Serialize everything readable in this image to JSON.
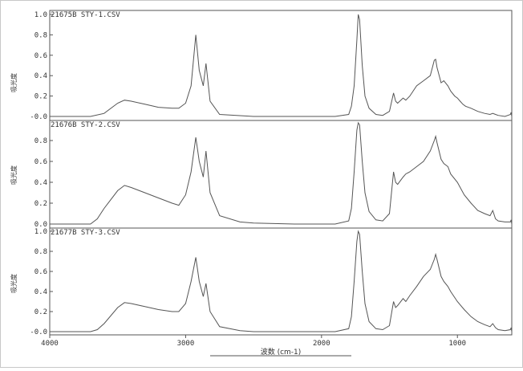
{
  "window": {
    "border_color": "#c0c0c0"
  },
  "chart_data": [
    {
      "type": "line",
      "header": "21675B  STY-1.CSV",
      "ylabel": "吸光度",
      "ylim": [
        -0.05,
        1.0
      ],
      "yticks": [
        "1.0",
        "0.8",
        "0.6",
        "0.4",
        "0.2",
        "-0.0"
      ],
      "xlim": [
        4000,
        600
      ],
      "x": [
        4000,
        3700,
        3600,
        3500,
        3450,
        3400,
        3300,
        3200,
        3100,
        3050,
        3000,
        2960,
        2925,
        2900,
        2870,
        2850,
        2820,
        2750,
        2500,
        2200,
        2000,
        1900,
        1800,
        1780,
        1760,
        1740,
        1730,
        1720,
        1700,
        1680,
        1650,
        1600,
        1550,
        1500,
        1470,
        1455,
        1440,
        1400,
        1380,
        1350,
        1300,
        1250,
        1200,
        1170,
        1160,
        1150,
        1120,
        1100,
        1070,
        1050,
        1020,
        1000,
        980,
        960,
        940,
        900,
        850,
        800,
        760,
        740,
        720,
        700,
        650,
        610,
        605,
        600
      ],
      "values": [
        0.0,
        0.0,
        0.03,
        0.13,
        0.16,
        0.15,
        0.12,
        0.09,
        0.08,
        0.08,
        0.13,
        0.3,
        0.8,
        0.45,
        0.3,
        0.52,
        0.15,
        0.02,
        0.0,
        0.0,
        0.0,
        0.0,
        0.02,
        0.1,
        0.3,
        0.75,
        1.0,
        0.95,
        0.5,
        0.2,
        0.08,
        0.02,
        0.01,
        0.05,
        0.23,
        0.15,
        0.13,
        0.18,
        0.16,
        0.2,
        0.3,
        0.35,
        0.4,
        0.55,
        0.56,
        0.48,
        0.33,
        0.35,
        0.3,
        0.25,
        0.2,
        0.18,
        0.15,
        0.12,
        0.1,
        0.08,
        0.05,
        0.03,
        0.02,
        0.03,
        0.02,
        0.01,
        0.0,
        0.02,
        0.04,
        0.0
      ]
    },
    {
      "type": "line",
      "header": "21676B  STY-2.CSV",
      "ylabel": "吸光度",
      "ylim": [
        0.0,
        1.0
      ],
      "yticks": [
        "0.8",
        "0.6",
        "0.4",
        "0.2",
        "0.0"
      ],
      "xlim": [
        4000,
        600
      ],
      "x": [
        4000,
        3700,
        3650,
        3600,
        3500,
        3450,
        3400,
        3300,
        3200,
        3100,
        3050,
        3000,
        2960,
        2925,
        2900,
        2870,
        2850,
        2820,
        2750,
        2600,
        2500,
        2200,
        2000,
        1900,
        1800,
        1780,
        1760,
        1740,
        1730,
        1720,
        1700,
        1680,
        1650,
        1600,
        1550,
        1500,
        1470,
        1455,
        1440,
        1400,
        1380,
        1350,
        1300,
        1250,
        1200,
        1170,
        1160,
        1150,
        1120,
        1100,
        1070,
        1050,
        1000,
        950,
        900,
        850,
        800,
        760,
        740,
        720,
        700,
        650,
        610,
        605,
        600
      ],
      "values": [
        0.0,
        0.0,
        0.05,
        0.15,
        0.32,
        0.37,
        0.35,
        0.3,
        0.25,
        0.2,
        0.18,
        0.28,
        0.5,
        0.83,
        0.6,
        0.45,
        0.7,
        0.3,
        0.08,
        0.02,
        0.01,
        0.0,
        0.0,
        0.0,
        0.03,
        0.15,
        0.5,
        0.9,
        0.97,
        0.95,
        0.6,
        0.3,
        0.12,
        0.04,
        0.03,
        0.1,
        0.5,
        0.4,
        0.38,
        0.45,
        0.48,
        0.5,
        0.55,
        0.6,
        0.7,
        0.8,
        0.84,
        0.78,
        0.62,
        0.58,
        0.55,
        0.48,
        0.4,
        0.28,
        0.2,
        0.13,
        0.1,
        0.08,
        0.13,
        0.05,
        0.03,
        0.02,
        0.02,
        0.04,
        0.0
      ]
    },
    {
      "type": "line",
      "header": "21677B  STY-3.CSV",
      "ylabel": "吸光度",
      "ylim": [
        -0.05,
        1.0
      ],
      "yticks": [
        "1.0",
        "0.8",
        "0.6",
        "0.4",
        "0.2",
        "-0.0"
      ],
      "xlim": [
        4000,
        600
      ],
      "xticks": [
        "4000",
        "3000",
        "2000",
        "1000"
      ],
      "xlabel": "波数 (cm-1)",
      "x": [
        4000,
        3700,
        3650,
        3600,
        3500,
        3450,
        3400,
        3300,
        3200,
        3100,
        3050,
        3000,
        2960,
        2925,
        2900,
        2870,
        2850,
        2820,
        2750,
        2600,
        2500,
        2200,
        2000,
        1900,
        1800,
        1780,
        1760,
        1740,
        1730,
        1720,
        1700,
        1680,
        1650,
        1600,
        1550,
        1500,
        1470,
        1455,
        1440,
        1400,
        1380,
        1350,
        1300,
        1250,
        1200,
        1170,
        1160,
        1150,
        1120,
        1100,
        1070,
        1050,
        1000,
        950,
        900,
        850,
        800,
        760,
        740,
        720,
        700,
        650,
        610,
        605,
        600
      ],
      "values": [
        0.0,
        0.0,
        0.02,
        0.08,
        0.24,
        0.29,
        0.28,
        0.25,
        0.22,
        0.2,
        0.2,
        0.28,
        0.5,
        0.74,
        0.5,
        0.35,
        0.48,
        0.2,
        0.05,
        0.01,
        0.0,
        0.0,
        0.0,
        0.0,
        0.03,
        0.15,
        0.5,
        0.9,
        1.0,
        0.97,
        0.6,
        0.28,
        0.1,
        0.03,
        0.02,
        0.06,
        0.3,
        0.24,
        0.26,
        0.33,
        0.3,
        0.36,
        0.45,
        0.55,
        0.62,
        0.72,
        0.77,
        0.72,
        0.55,
        0.5,
        0.45,
        0.4,
        0.3,
        0.22,
        0.15,
        0.1,
        0.07,
        0.05,
        0.08,
        0.04,
        0.02,
        0.01,
        0.02,
        0.04,
        0.0
      ]
    }
  ]
}
